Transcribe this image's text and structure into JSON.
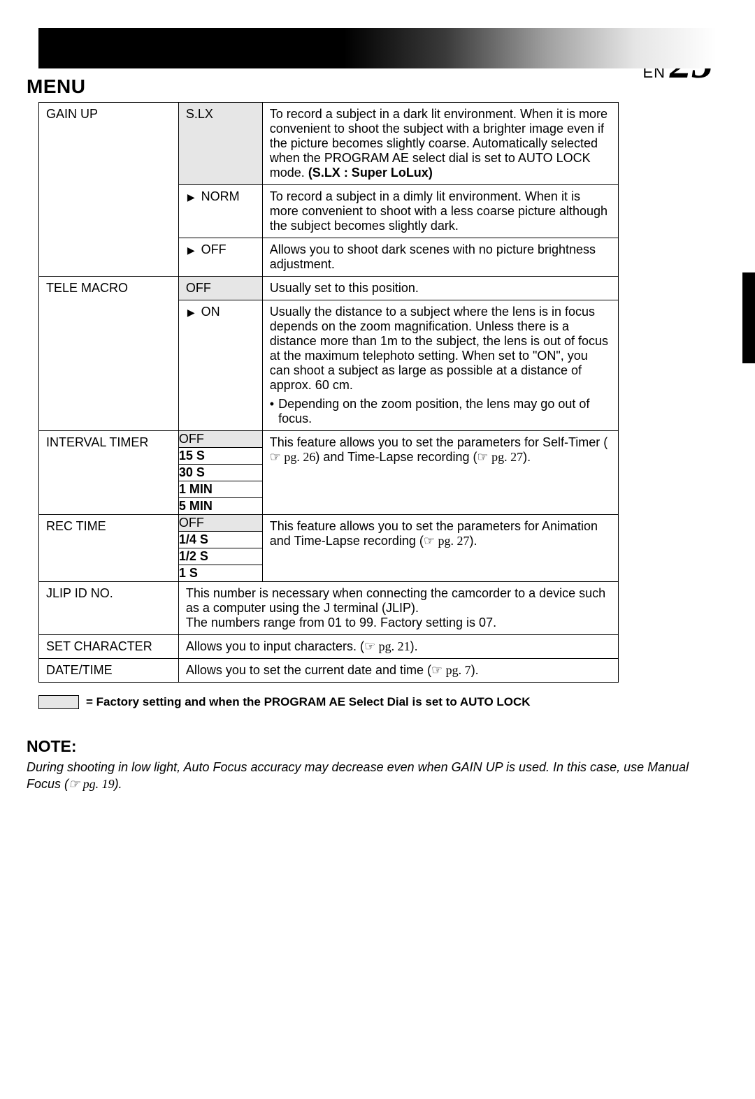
{
  "page": {
    "lang_prefix": "EN",
    "number": "25"
  },
  "title": "MENU",
  "rows": {
    "gain_up": {
      "name": "GAIN UP",
      "options": [
        {
          "label": "S.LX",
          "factory": true,
          "arrow": false,
          "desc": "To record a subject in a dark lit environment. When it is more convenient to shoot the subject with a brighter image even if the picture becomes slightly coarse. Automatically selected when the PROGRAM AE select dial is set to AUTO LOCK mode.",
          "desc_bold_tail": "(S.LX : Super LoLux)"
        },
        {
          "label": "NORM",
          "factory": false,
          "arrow": true,
          "desc": "To record a subject in a dimly lit environment. When it is more convenient to shoot with a less coarse picture although the subject becomes slightly dark."
        },
        {
          "label": "OFF",
          "factory": false,
          "arrow": true,
          "desc": "Allows you to shoot dark scenes with no picture brightness adjustment."
        }
      ]
    },
    "tele_macro": {
      "name": "TELE MACRO",
      "options": [
        {
          "label": "OFF",
          "factory": true,
          "arrow": false,
          "desc": "Usually set to this position."
        },
        {
          "label": "ON",
          "factory": false,
          "arrow": true,
          "desc": "Usually the distance to a subject where the lens is in focus depends on the zoom magnification. Unless there is a distance more than 1m to the subject, the lens is out of focus at the maximum telephoto setting. When set to \"ON\", you can shoot a subject as large as possible at a distance of approx. 60 cm.",
          "bullet": "Depending on the zoom position, the lens may go out of focus."
        }
      ]
    },
    "interval_timer": {
      "name": "INTERVAL TIMER",
      "stack": [
        "OFF",
        "15 S",
        "30 S",
        "1 MIN",
        "5 MIN"
      ],
      "factory_index": 0,
      "desc_pre": "This feature allows you to set the parameters for Self-Timer (",
      "desc_ref1": "☞ pg. 26",
      "desc_mid": ") and Time-Lapse recording (",
      "desc_ref2": "☞ pg. 27",
      "desc_post": ")."
    },
    "rec_time": {
      "name": "REC TIME",
      "stack": [
        "OFF",
        "1/4 S",
        "1/2 S",
        "1 S"
      ],
      "factory_index": 0,
      "desc_pre": "This feature allows you to set the parameters for Animation and Time-Lapse recording (",
      "desc_ref1": "☞ pg. 27",
      "desc_post": ")."
    },
    "jlip": {
      "name": "JLIP ID NO.",
      "desc": "This number is necessary when connecting the camcorder to a device such as a computer using the J terminal (JLIP).\nThe numbers range from 01 to 99. Factory setting is 07."
    },
    "set_char": {
      "name": "SET CHARACTER",
      "desc_pre": "Allows you to input characters. (",
      "desc_ref": "☞ pg. 21",
      "desc_post": ")."
    },
    "date_time": {
      "name": "DATE/TIME",
      "desc_pre": "Allows you to set the current date and time (",
      "desc_ref": "☞ pg. 7",
      "desc_post": ")."
    }
  },
  "legend": "= Factory setting and when the PROGRAM AE Select Dial is set to AUTO LOCK",
  "note": {
    "title": "NOTE:",
    "body_pre": "During shooting in low light, Auto Focus accuracy may decrease even when GAIN UP is used. In this case, use Manual Focus (",
    "body_ref": "☞ pg. 19",
    "body_post": ")."
  }
}
